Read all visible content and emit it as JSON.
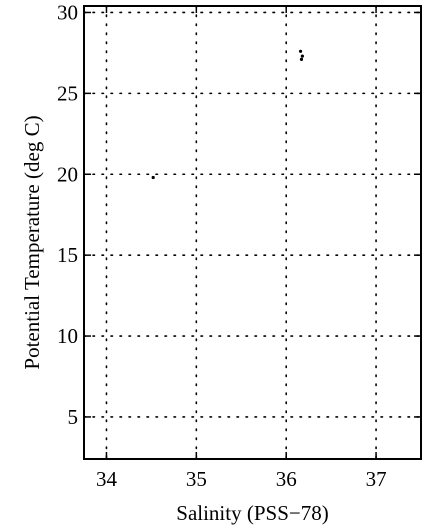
{
  "chart_data": {
    "type": "scatter",
    "xlabel": "Salinity (PSS−78)",
    "ylabel": "Potential Temperature (deg C)",
    "xlim": [
      33.75,
      37.5
    ],
    "ylim": [
      2.4,
      30.4
    ],
    "xticks": [
      34,
      35,
      36,
      37
    ],
    "yticks": [
      5,
      10,
      15,
      20,
      25,
      30
    ],
    "xtick_labels": [
      "34",
      "35",
      "36",
      "37"
    ],
    "ytick_labels": [
      "5",
      "10",
      "15",
      "20",
      "25",
      "30"
    ],
    "grid": true,
    "series": [
      {
        "points": [
          {
            "x": 36.17,
            "y": 27.1
          },
          {
            "x": 36.16,
            "y": 27.6
          },
          {
            "x": 36.18,
            "y": 27.3
          },
          {
            "x": 34.52,
            "y": 19.8
          }
        ]
      }
    ],
    "colors": {
      "axes": "#000000",
      "grid": "#000000",
      "points": "#000000"
    }
  }
}
